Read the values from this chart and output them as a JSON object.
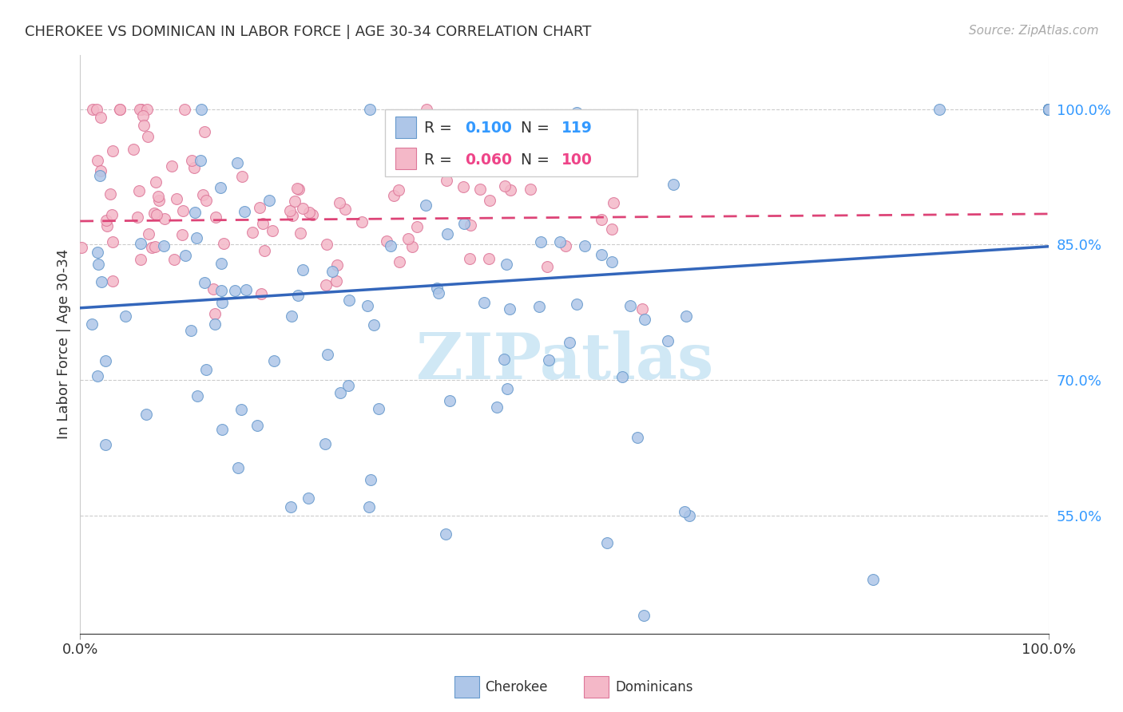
{
  "title": "CHEROKEE VS DOMINICAN IN LABOR FORCE | AGE 30-34 CORRELATION CHART",
  "source": "Source: ZipAtlas.com",
  "ylabel": "In Labor Force | Age 30-34",
  "xlim": [
    0.0,
    1.0
  ],
  "ylim": [
    0.42,
    1.06
  ],
  "yticks": [
    0.55,
    0.7,
    0.85,
    1.0
  ],
  "ytick_labels": [
    "55.0%",
    "70.0%",
    "85.0%",
    "100.0%"
  ],
  "xtick_left": "0.0%",
  "xtick_right": "100.0%",
  "grid_color": "#cccccc",
  "background_color": "#ffffff",
  "cherokee_face_color": "#aec6e8",
  "cherokee_edge_color": "#6699cc",
  "dominican_face_color": "#f4b8c8",
  "dominican_edge_color": "#dd7799",
  "cherokee_line_color": "#3366bb",
  "dominican_line_color": "#dd4477",
  "cherokee_R": "0.100",
  "cherokee_N": "119",
  "dominican_R": "0.060",
  "dominican_N": "100",
  "R_label_color": "#333333",
  "N_label_color": "#333333",
  "cherokee_val_color": "#3399ff",
  "dominican_val_color": "#ee4488",
  "watermark_color": "#d0e8f5",
  "marker_size": 100
}
